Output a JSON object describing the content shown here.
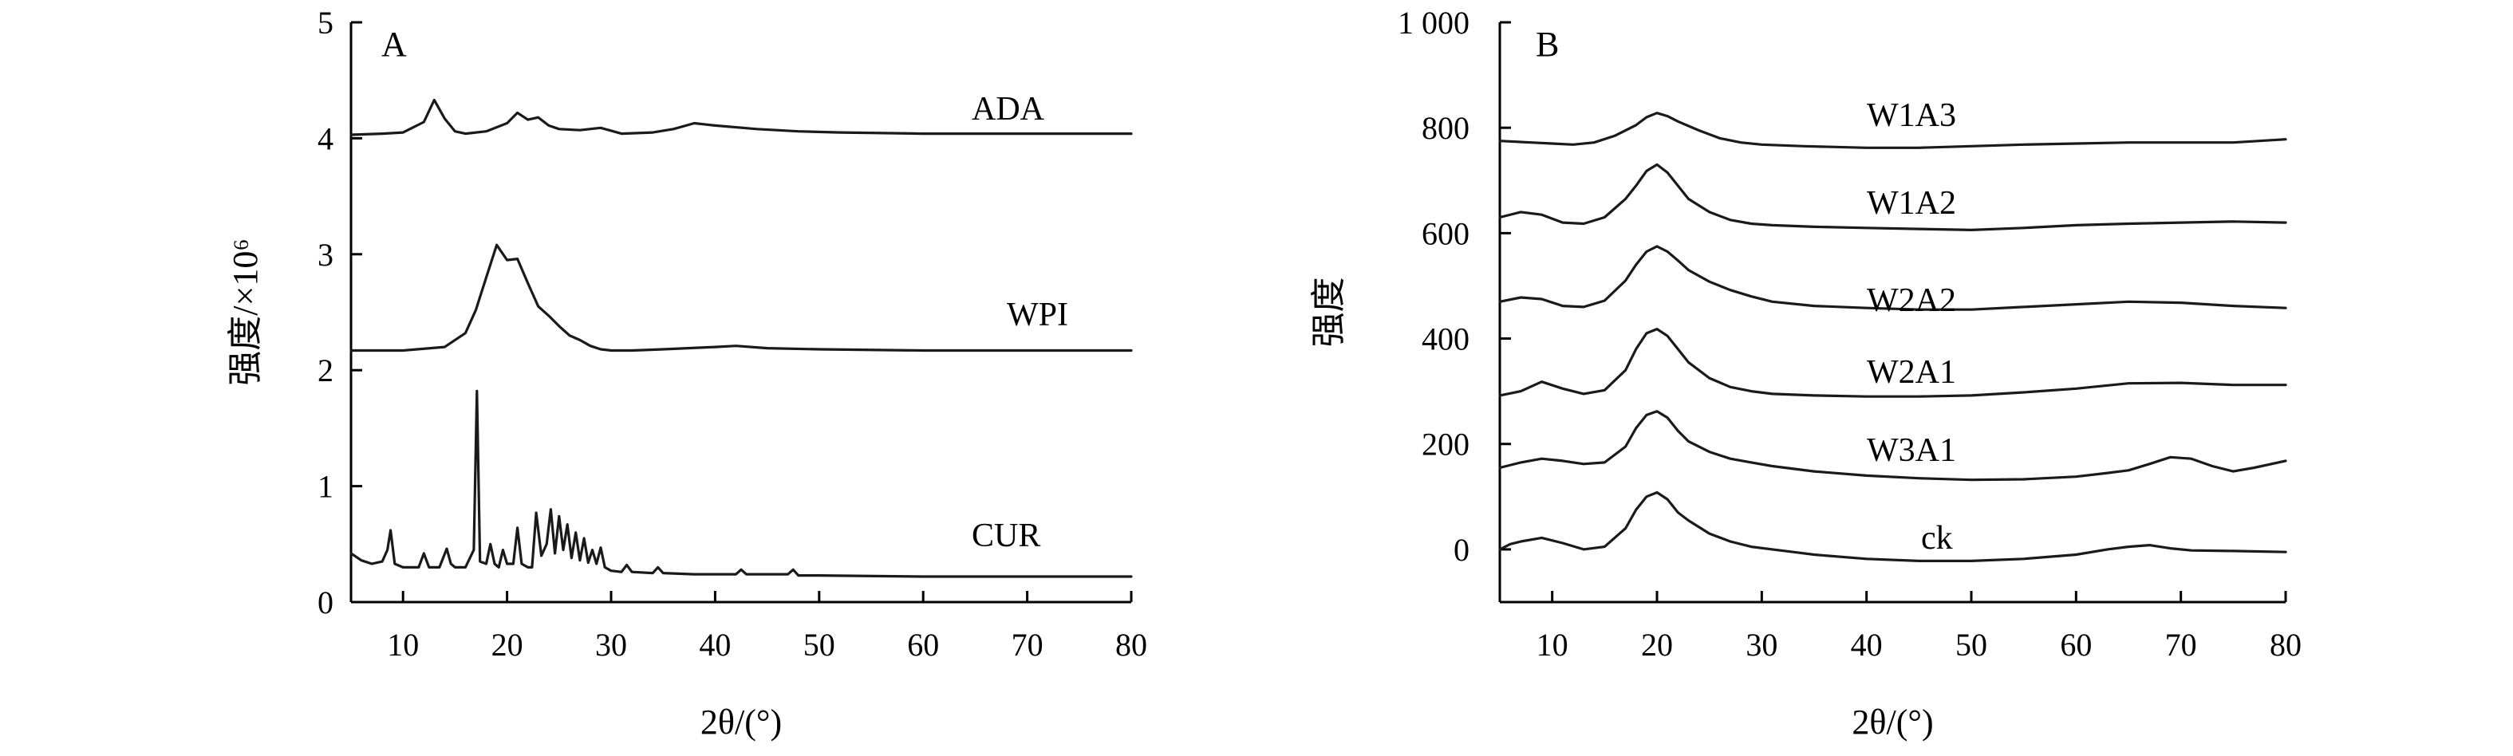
{
  "chart_data": [
    {
      "panel_label": "A",
      "type": "line",
      "xlabel": "2θ/(°)",
      "ylabel": "强度/×10⁶",
      "xlim": [
        5,
        80
      ],
      "ylim": [
        0,
        5
      ],
      "x_ticks": [
        "10",
        "20",
        "30",
        "40",
        "50",
        "60",
        "70",
        "80"
      ],
      "y_ticks": [
        "0",
        "1",
        "2",
        "3",
        "4",
        "5"
      ],
      "grid": false,
      "series": [
        {
          "name": "ADA",
          "x": [
            5,
            8,
            10,
            12,
            13,
            14,
            15,
            16,
            18,
            20,
            21,
            22,
            23,
            24,
            25,
            27,
            29,
            31,
            34,
            36,
            38,
            40,
            44,
            48,
            52,
            60,
            70,
            80
          ],
          "y": [
            4.03,
            4.04,
            4.05,
            4.14,
            4.33,
            4.17,
            4.06,
            4.04,
            4.06,
            4.13,
            4.22,
            4.16,
            4.18,
            4.11,
            4.08,
            4.07,
            4.09,
            4.04,
            4.05,
            4.08,
            4.13,
            4.11,
            4.08,
            4.06,
            4.05,
            4.04,
            4.04,
            4.04
          ]
        },
        {
          "name": "WPI",
          "x": [
            5,
            10,
            14,
            16,
            17,
            18,
            19,
            20,
            21,
            22,
            23,
            24,
            25,
            26,
            27,
            28,
            29,
            30,
            32,
            35,
            40,
            42,
            45,
            50,
            60,
            70,
            80
          ],
          "y": [
            2.17,
            2.17,
            2.2,
            2.32,
            2.52,
            2.8,
            3.08,
            2.95,
            2.96,
            2.75,
            2.55,
            2.47,
            2.38,
            2.3,
            2.26,
            2.21,
            2.18,
            2.17,
            2.17,
            2.18,
            2.2,
            2.21,
            2.19,
            2.18,
            2.17,
            2.17,
            2.17
          ]
        },
        {
          "name": "CUR",
          "x": [
            5,
            6,
            7,
            8,
            8.5,
            8.8,
            9.2,
            10,
            11.5,
            12,
            12.5,
            13.5,
            14.2,
            14.6,
            15,
            16,
            16.8,
            17.1,
            17.4,
            18,
            18.4,
            18.8,
            19.2,
            19.6,
            20,
            20.6,
            21,
            21.4,
            22,
            22.4,
            22.8,
            23.3,
            23.8,
            24.2,
            24.6,
            25,
            25.4,
            25.8,
            26.2,
            26.6,
            27,
            27.4,
            27.8,
            28.2,
            28.6,
            29,
            29.4,
            30,
            31,
            31.5,
            32,
            34,
            34.5,
            35,
            38,
            42,
            42.5,
            43,
            45,
            47,
            47.5,
            48,
            50,
            60,
            70,
            80
          ],
          "y": [
            0.42,
            0.36,
            0.33,
            0.35,
            0.45,
            0.62,
            0.33,
            0.3,
            0.3,
            0.42,
            0.3,
            0.3,
            0.46,
            0.33,
            0.3,
            0.3,
            0.45,
            1.82,
            0.35,
            0.33,
            0.5,
            0.33,
            0.3,
            0.45,
            0.33,
            0.33,
            0.64,
            0.33,
            0.3,
            0.3,
            0.77,
            0.4,
            0.5,
            0.8,
            0.42,
            0.74,
            0.45,
            0.67,
            0.38,
            0.6,
            0.36,
            0.55,
            0.34,
            0.45,
            0.33,
            0.47,
            0.3,
            0.27,
            0.26,
            0.32,
            0.26,
            0.25,
            0.3,
            0.25,
            0.24,
            0.24,
            0.28,
            0.24,
            0.24,
            0.24,
            0.28,
            0.23,
            0.23,
            0.22,
            0.22,
            0.22
          ]
        }
      ]
    },
    {
      "panel_label": "B",
      "type": "line",
      "xlabel": "2θ/(°)",
      "ylabel": "强度",
      "xlim": [
        5,
        80
      ],
      "ylim": [
        -100,
        1000
      ],
      "x_ticks": [
        "10",
        "20",
        "30",
        "40",
        "50",
        "60",
        "70",
        "80"
      ],
      "y_ticks": [
        "0",
        "200",
        "400",
        "600",
        "800",
        "1 000"
      ],
      "grid": false,
      "series": [
        {
          "name": "W1A3",
          "x": [
            5,
            8,
            10,
            12,
            14,
            16,
            18,
            19,
            20,
            21,
            22,
            24,
            26,
            28,
            30,
            34,
            40,
            45,
            50,
            55,
            60,
            65,
            70,
            75,
            80
          ],
          "y": [
            775,
            772,
            770,
            768,
            772,
            785,
            805,
            820,
            828,
            822,
            812,
            795,
            780,
            772,
            768,
            765,
            762,
            762,
            765,
            768,
            770,
            772,
            772,
            772,
            778
          ]
        },
        {
          "name": "W1A2",
          "x": [
            5,
            7,
            9,
            11,
            13,
            15,
            17,
            18,
            19,
            20,
            21,
            22,
            23,
            25,
            27,
            29,
            31,
            35,
            40,
            45,
            50,
            55,
            60,
            65,
            70,
            75,
            80
          ],
          "y": [
            630,
            640,
            635,
            620,
            618,
            630,
            665,
            690,
            718,
            730,
            715,
            690,
            665,
            640,
            625,
            618,
            615,
            612,
            610,
            608,
            606,
            610,
            615,
            618,
            620,
            622,
            620
          ]
        },
        {
          "name": "W2A2",
          "x": [
            5,
            7,
            9,
            11,
            13,
            15,
            17,
            18,
            19,
            20,
            21,
            22,
            23,
            25,
            27,
            29,
            31,
            35,
            40,
            45,
            50,
            55,
            60,
            65,
            70,
            75,
            80
          ],
          "y": [
            470,
            478,
            475,
            462,
            460,
            472,
            510,
            540,
            565,
            575,
            565,
            548,
            530,
            508,
            492,
            480,
            470,
            462,
            458,
            455,
            455,
            460,
            465,
            470,
            468,
            462,
            458
          ]
        },
        {
          "name": "W2A1",
          "x": [
            5,
            7,
            9,
            11,
            13,
            15,
            17,
            18,
            19,
            20,
            21,
            22,
            23,
            25,
            27,
            29,
            31,
            35,
            40,
            45,
            50,
            55,
            60,
            65,
            70,
            75,
            80
          ],
          "y": [
            292,
            300,
            318,
            305,
            295,
            302,
            340,
            380,
            410,
            418,
            405,
            380,
            355,
            325,
            308,
            300,
            295,
            292,
            290,
            290,
            292,
            298,
            305,
            315,
            316,
            312,
            312
          ]
        },
        {
          "name": "W3A1",
          "x": [
            5,
            7,
            9,
            11,
            13,
            15,
            17,
            18,
            19,
            20,
            21,
            22,
            23,
            25,
            27,
            29,
            31,
            35,
            40,
            45,
            50,
            55,
            60,
            63,
            65,
            67,
            69,
            71,
            73,
            75,
            77,
            80
          ],
          "y": [
            155,
            165,
            172,
            168,
            162,
            165,
            195,
            230,
            255,
            262,
            250,
            225,
            205,
            185,
            172,
            165,
            158,
            148,
            140,
            135,
            132,
            133,
            138,
            145,
            150,
            162,
            175,
            172,
            158,
            148,
            155,
            168
          ]
        },
        {
          "name": "ck",
          "x": [
            5,
            6,
            7,
            9,
            11,
            13,
            15,
            17,
            18,
            19,
            20,
            21,
            22,
            23,
            25,
            27,
            29,
            31,
            33,
            35,
            40,
            45,
            50,
            55,
            60,
            63,
            65,
            67,
            69,
            71,
            75,
            80
          ],
          "y": [
            0,
            10,
            15,
            22,
            12,
            0,
            5,
            40,
            75,
            100,
            108,
            95,
            70,
            55,
            30,
            15,
            5,
            0,
            -5,
            -10,
            -18,
            -22,
            -22,
            -18,
            -10,
            0,
            5,
            8,
            2,
            -2,
            -3,
            -5
          ]
        }
      ]
    }
  ]
}
